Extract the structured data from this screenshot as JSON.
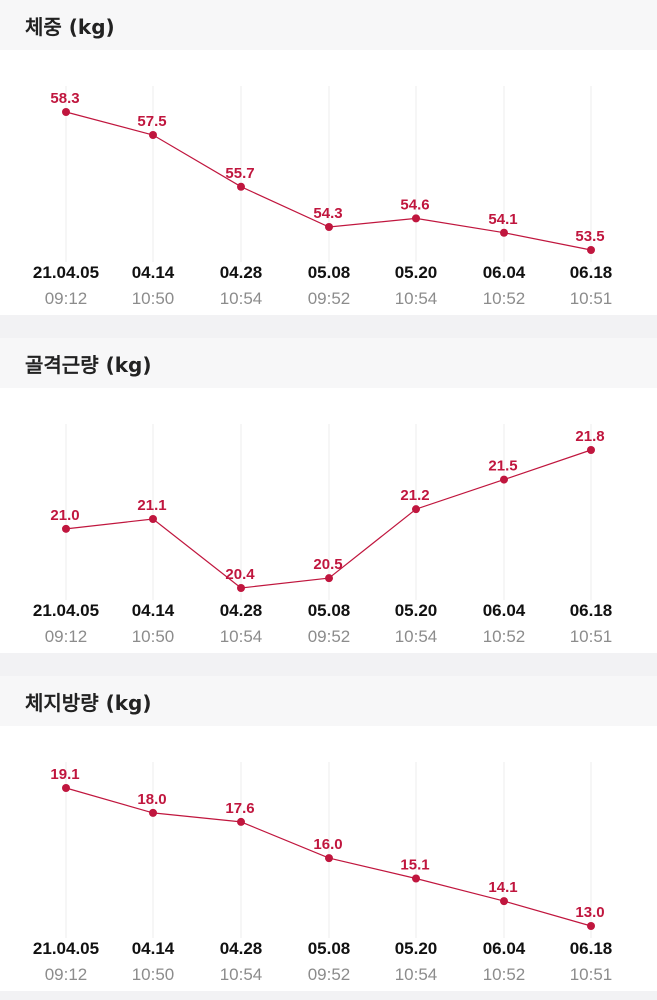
{
  "sections": [
    {
      "title": "체중 (kg)"
    },
    {
      "title": "골격근량 (kg)"
    },
    {
      "title": "체지방량 (kg)"
    }
  ],
  "colors": {
    "accent": "#c0163e",
    "grid": "#ececec",
    "header_bg": "#f7f7f8"
  },
  "chart_data": [
    {
      "type": "line",
      "title": "체중 (kg)",
      "categories": [
        "21.04.05",
        "04.14",
        "04.28",
        "05.08",
        "05.20",
        "06.04",
        "06.18"
      ],
      "times": [
        "09:12",
        "10:50",
        "10:54",
        "09:52",
        "10:54",
        "10:52",
        "10:51"
      ],
      "values": [
        58.3,
        57.5,
        55.7,
        54.3,
        54.6,
        54.1,
        53.5
      ],
      "value_labels": [
        "58.3",
        "57.5",
        "55.7",
        "54.3",
        "54.6",
        "54.1",
        "53.5"
      ],
      "ylim": [
        53.5,
        58.3
      ],
      "grid": "vertical"
    },
    {
      "type": "line",
      "title": "골격근량 (kg)",
      "categories": [
        "21.04.05",
        "04.14",
        "04.28",
        "05.08",
        "05.20",
        "06.04",
        "06.18"
      ],
      "times": [
        "09:12",
        "10:50",
        "10:54",
        "09:52",
        "10:54",
        "10:52",
        "10:51"
      ],
      "values": [
        21.0,
        21.1,
        20.4,
        20.5,
        21.2,
        21.5,
        21.8
      ],
      "value_labels": [
        "21.0",
        "21.1",
        "20.4",
        "20.5",
        "21.2",
        "21.5",
        "21.8"
      ],
      "ylim": [
        20.4,
        21.8
      ],
      "grid": "vertical"
    },
    {
      "type": "line",
      "title": "체지방량 (kg)",
      "categories": [
        "21.04.05",
        "04.14",
        "04.28",
        "05.08",
        "05.20",
        "06.04",
        "06.18"
      ],
      "times": [
        "09:12",
        "10:50",
        "10:54",
        "09:52",
        "10:54",
        "10:52",
        "10:51"
      ],
      "values": [
        19.1,
        18.0,
        17.6,
        16.0,
        15.1,
        14.1,
        13.0
      ],
      "value_labels": [
        "19.1",
        "18.0",
        "17.6",
        "16.0",
        "15.1",
        "14.1",
        "13.0"
      ],
      "ylim": [
        13.0,
        19.1
      ],
      "grid": "vertical"
    }
  ]
}
